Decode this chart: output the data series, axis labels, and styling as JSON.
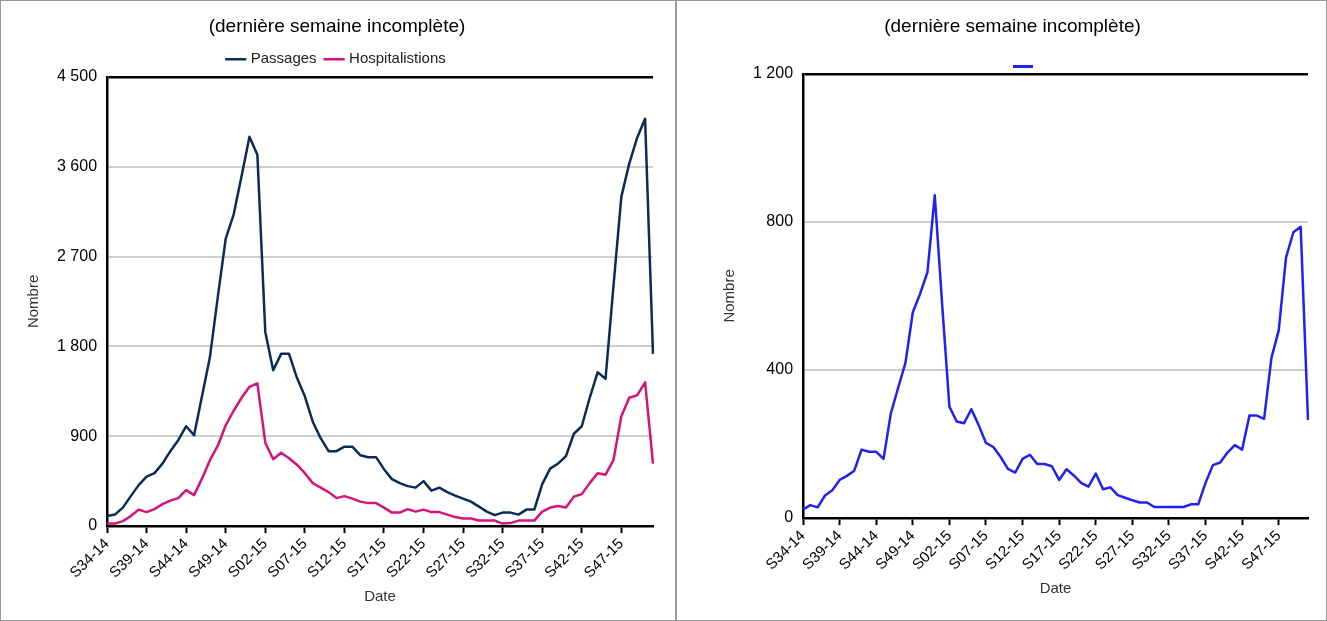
{
  "chart_data": [
    {
      "type": "line",
      "title": "(dernière semaine incomplète)",
      "xlabel": "Date",
      "ylabel": "Nombre",
      "categories": [
        "S34-14",
        null,
        null,
        null,
        null,
        "S39-14",
        null,
        null,
        null,
        null,
        "S44-14",
        null,
        null,
        null,
        null,
        "S49-14",
        null,
        null,
        null,
        null,
        "S02-15",
        null,
        null,
        null,
        null,
        "S07-15",
        null,
        null,
        null,
        null,
        "S12-15",
        null,
        null,
        null,
        null,
        "S17-15",
        null,
        null,
        null,
        null,
        "S22-15",
        null,
        null,
        null,
        null,
        "S27-15",
        null,
        null,
        null,
        null,
        "S32-15",
        null,
        null,
        null,
        null,
        "S37-15",
        null,
        null,
        null,
        null,
        "S42-15",
        null,
        null,
        null,
        null,
        "S47-15",
        null,
        null,
        null,
        null
      ],
      "series": [
        {
          "name": "Passages",
          "color": "#0b2d55",
          "values": [
            100,
            115,
            185,
            300,
            410,
            495,
            530,
            625,
            750,
            860,
            1000,
            910,
            1300,
            1690,
            2295,
            2880,
            3120,
            3505,
            3900,
            3720,
            1945,
            1560,
            1725,
            1725,
            1485,
            1300,
            1045,
            880,
            750,
            750,
            795,
            795,
            710,
            690,
            690,
            570,
            470,
            430,
            400,
            385,
            450,
            355,
            385,
            340,
            305,
            275,
            245,
            195,
            145,
            110,
            135,
            135,
            115,
            165,
            165,
            420,
            575,
            625,
            700,
            925,
            1000,
            1285,
            1540,
            1475,
            2400,
            3300,
            3630,
            3890,
            4080,
            1725
          ]
        },
        {
          "name": "Hospitalistions",
          "color": "#d6137a",
          "values": [
            25,
            25,
            50,
            100,
            165,
            140,
            170,
            220,
            255,
            280,
            360,
            310,
            475,
            660,
            805,
            1010,
            1155,
            1285,
            1395,
            1430,
            835,
            670,
            735,
            680,
            615,
            530,
            430,
            385,
            340,
            280,
            300,
            275,
            245,
            230,
            230,
            185,
            135,
            135,
            170,
            145,
            165,
            140,
            140,
            115,
            90,
            75,
            75,
            55,
            55,
            55,
            25,
            30,
            55,
            55,
            55,
            145,
            185,
            200,
            185,
            295,
            320,
            430,
            530,
            515,
            660,
            1100,
            1285,
            1310,
            1440,
            625
          ]
        }
      ],
      "ylim": [
        0,
        4500
      ],
      "yticks": [
        0,
        {
          "value": 900,
          "label": "900"
        },
        {
          "value": 1800,
          "label": "1 800"
        },
        {
          "value": 2700,
          "label": "2 700"
        },
        {
          "value": 3600,
          "label": "3 600"
        },
        {
          "value": 4500,
          "label": "4 500"
        }
      ],
      "grid": "y",
      "legend": "top",
      "marker": "none",
      "line_style": "solid"
    },
    {
      "type": "line",
      "title": "(dernière semaine incomplète)",
      "xlabel": "Date",
      "ylabel": "Nombre",
      "categories": [
        "S34-14",
        null,
        null,
        null,
        null,
        "S39-14",
        null,
        null,
        null,
        null,
        "S44-14",
        null,
        null,
        null,
        null,
        "S49-14",
        null,
        null,
        null,
        null,
        "S02-15",
        null,
        null,
        null,
        null,
        "S07-15",
        null,
        null,
        null,
        null,
        "S12-15",
        null,
        null,
        null,
        null,
        "S17-15",
        null,
        null,
        null,
        null,
        "S22-15",
        null,
        null,
        null,
        null,
        "S27-15",
        null,
        null,
        null,
        null,
        "S32-15",
        null,
        null,
        null,
        null,
        "S37-15",
        null,
        null,
        null,
        null,
        "S42-15",
        null,
        null,
        null,
        null,
        "S47-15",
        null,
        null,
        null,
        null
      ],
      "series": [
        {
          "color": "#2121f2",
          "values": [
            23,
            35,
            29,
            61,
            75,
            103,
            114,
            128,
            185,
            179,
            179,
            160,
            283,
            352,
            420,
            556,
            606,
            664,
            872,
            580,
            301,
            261,
            256,
            294,
            251,
            203,
            192,
            165,
            133,
            123,
            160,
            171,
            146,
            146,
            140,
            103,
            132,
            115,
            95,
            85,
            120,
            78,
            83,
            62,
            55,
            48,
            42,
            42,
            30,
            30,
            30,
            30,
            30,
            37,
            37,
            95,
            143,
            150,
            177,
            197,
            185,
            277,
            277,
            268,
            432,
            507,
            704,
            772,
            787,
            265
          ]
        }
      ],
      "ylim": [
        0,
        1200
      ],
      "yticks": [
        0,
        400,
        800,
        {
          "value": 1200,
          "label": "1 200"
        }
      ],
      "grid": "y",
      "marker": "none",
      "line_style": "solid"
    }
  ]
}
